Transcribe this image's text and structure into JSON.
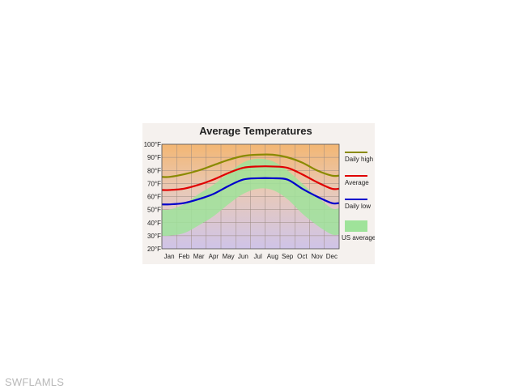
{
  "watermark": "SWFLAMLS",
  "colors": {
    "daily_high": "#8a8a00",
    "average": "#e00000",
    "daily_low": "#0000cc",
    "us_average_band": "#9fe39a",
    "background_warm": "#f3b673",
    "background_mid": "#e8c9b8",
    "background_cool": "#cfc4e8"
  },
  "chart_data": {
    "type": "line",
    "title": "Average Temperatures",
    "categories": [
      "Jan",
      "Feb",
      "Mar",
      "Apr",
      "May",
      "Jun",
      "Jul",
      "Aug",
      "Sep",
      "Oct",
      "Nov",
      "Dec"
    ],
    "y_ticks": [
      "20°F",
      "30°F",
      "40°F",
      "50°F",
      "60°F",
      "70°F",
      "80°F",
      "90°F",
      "100°F"
    ],
    "ylim": [
      20,
      100
    ],
    "grid": true,
    "legend_position": "right",
    "series": [
      {
        "name": "Daily high",
        "values": [
          75,
          77,
          80,
          84,
          88,
          91,
          92,
          92,
          90,
          86,
          80,
          76
        ]
      },
      {
        "name": "Average",
        "values": [
          65,
          66,
          69,
          73,
          78,
          82,
          83,
          83,
          82,
          77,
          71,
          66
        ]
      },
      {
        "name": "Daily low",
        "values": [
          54,
          55,
          58,
          62,
          68,
          73,
          74,
          74,
          73,
          66,
          60,
          55
        ]
      }
    ],
    "us_average": {
      "name": "US average",
      "high": [
        50,
        54,
        62,
        69,
        78,
        86,
        89,
        87,
        80,
        70,
        60,
        51
      ],
      "low": [
        30,
        32,
        38,
        45,
        54,
        62,
        66,
        65,
        58,
        47,
        38,
        31
      ]
    }
  }
}
